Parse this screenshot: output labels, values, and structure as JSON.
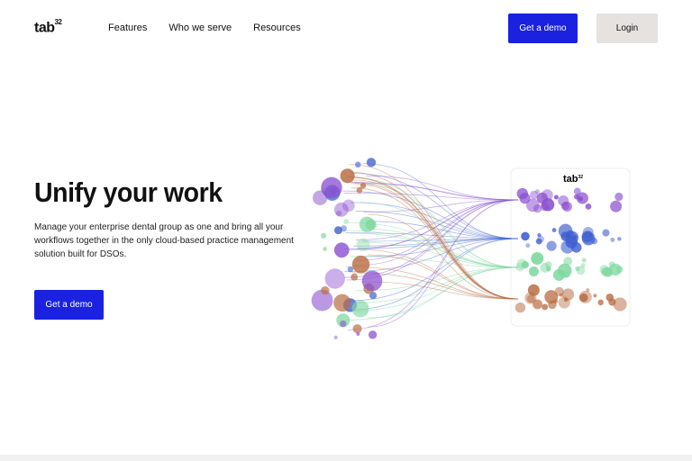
{
  "nav": {
    "logo": "tab",
    "logo_sup": "32",
    "links": [
      "Features",
      "Who we serve",
      "Resources"
    ],
    "demo_label": "Get a demo",
    "login_label": "Login",
    "accent": "#1a22e0"
  },
  "hero": {
    "title": "Unify your work",
    "description": "Manage your enterprise dental group as one and bring all your workflows together in the only cloud-based practice management solution built for DSOs.",
    "cta_label": "Get a demo"
  },
  "illustration": {
    "card_logo": "tab",
    "card_logo_sup": "32",
    "row_colors": [
      "#8a4fd0",
      "#3f5fd0",
      "#7fd8a0",
      "#b86a40"
    ]
  }
}
